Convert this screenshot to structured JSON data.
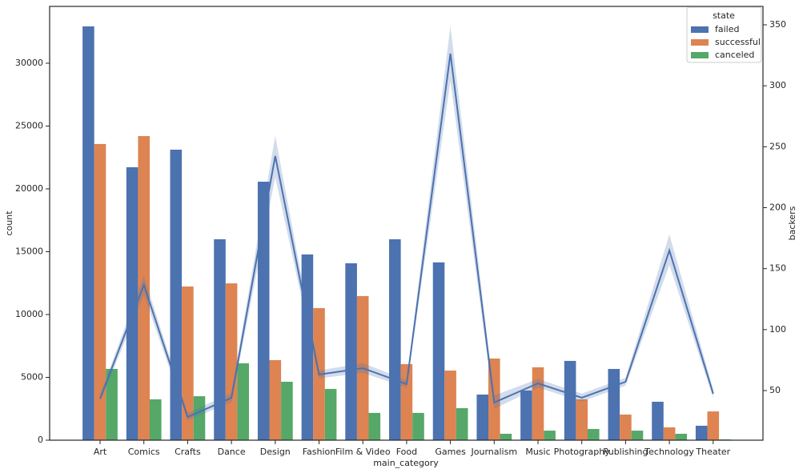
{
  "chart_data": {
    "type": "bar",
    "xlabel": "main_category",
    "ylabel": "count",
    "y2label": "backers",
    "legend_title": "state",
    "legend": "upper right",
    "categories": [
      "Art",
      "Comics",
      "Crafts",
      "Dance",
      "Design",
      "Fashion",
      "Film & Video",
      "Food",
      "Games",
      "Journalism",
      "Music",
      "Photography",
      "Publishing",
      "Technology",
      "Theater"
    ],
    "series": [
      {
        "name": "failed",
        "color": "#4c72b0",
        "values": [
          32930,
          21720,
          23120,
          15990,
          20570,
          14780,
          14080,
          15990,
          14150,
          3630,
          3950,
          6310,
          5670,
          3060,
          1150
        ]
      },
      {
        "name": "successful",
        "color": "#dd8452",
        "values": [
          23570,
          24200,
          12230,
          12480,
          6370,
          10510,
          11470,
          6050,
          5540,
          6500,
          5800,
          3250,
          2040,
          1020,
          2290
        ]
      },
      {
        "name": "canceled",
        "color": "#55a868",
        "values": [
          5670,
          3250,
          3500,
          6120,
          4650,
          4080,
          2170,
          2170,
          2550,
          510,
          760,
          890,
          760,
          510,
          60
        ]
      }
    ],
    "line": {
      "axis": "y2",
      "color": "#4c72b0",
      "values": [
        43.4,
        136.7,
        28.3,
        44.1,
        242.4,
        63.1,
        68.4,
        55.3,
        326.4,
        40.2,
        55.9,
        44.1,
        57.2,
        164.9,
        47.4
      ],
      "ci_lower": [
        40.5,
        128.5,
        25.5,
        40.5,
        225.0,
        60.0,
        64.5,
        52.5,
        304.0,
        35.0,
        52.5,
        41.0,
        54.0,
        153.0,
        44.0
      ],
      "ci_upper": [
        46.5,
        144.0,
        31.5,
        48.0,
        259.0,
        66.5,
        72.5,
        58.5,
        349.0,
        46.0,
        59.5,
        47.5,
        60.5,
        178.0,
        51.0
      ]
    },
    "ylim": [
      0,
      34520
    ],
    "yticks": [
      0,
      5000,
      10000,
      15000,
      20000,
      25000,
      30000
    ],
    "y2lim": [
      9.3,
      365.1
    ],
    "y2ticks": [
      50,
      100,
      150,
      200,
      250,
      300,
      350
    ]
  }
}
